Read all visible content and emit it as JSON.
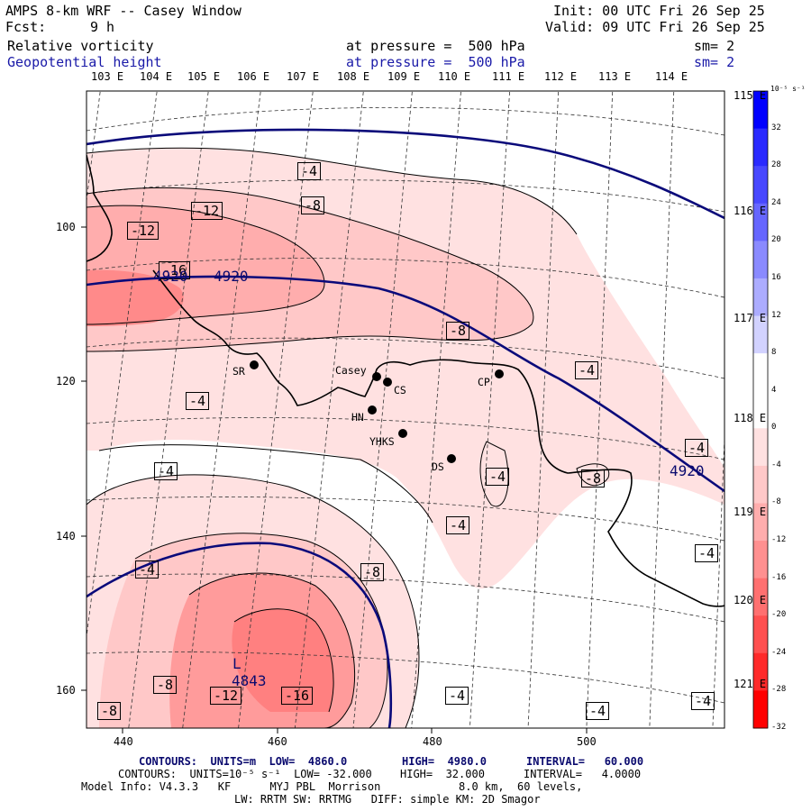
{
  "header": {
    "title": "AMPS 8-km WRF -- Casey Window",
    "fcst_label": "Fcst:",
    "fcst_value": "9 h",
    "init": "Init: 00 UTC Fri 26 Sep 25",
    "valid": "Valid: 09 UTC Fri 26 Sep 25",
    "field1": "Relative vorticity",
    "field1_level": "at pressure =  500 hPa",
    "field1_sm": "sm= 2",
    "field2": "Geopotential height",
    "field2_level": "at pressure =  500 hPa",
    "field2_sm": "sm= 2"
  },
  "lon_labels_top": [
    "103 E",
    "104 E",
    "105 E",
    "106 E",
    "107 E",
    "108 E",
    "109 E",
    "110 E",
    "111 E",
    "112 E",
    "113 E",
    "114 E"
  ],
  "lon_labels_right": [
    "115 E",
    "116 E",
    "117 E",
    "118 E",
    "119 E",
    "120 E",
    "121 E"
  ],
  "y_ticks": [
    "100",
    "120",
    "140",
    "160"
  ],
  "x_ticks": [
    "440",
    "460",
    "480",
    "500"
  ],
  "stations": [
    {
      "name": "SR"
    },
    {
      "name": "Casey"
    },
    {
      "name": "CS"
    },
    {
      "name": "HN"
    },
    {
      "name": "YHKS"
    },
    {
      "name": "CP"
    },
    {
      "name": "DS"
    }
  ],
  "vort_labels": [
    "-4",
    "-8",
    "-12",
    "-12",
    "-16",
    "-4",
    "-8",
    "-4",
    "-4",
    "-4",
    "-4",
    "-8",
    "-4",
    "-8",
    "-4",
    "-4",
    "-8",
    "-12",
    "-16",
    "-4",
    "-4",
    "-4",
    "-8"
  ],
  "height_labels": [
    "4920",
    "4920",
    "4920",
    "4843"
  ],
  "low_marker": "L",
  "colorbar": {
    "unit": "10⁻⁵ s⁻¹",
    "ticks": [
      "32",
      "28",
      "24",
      "20",
      "16",
      "12",
      "8",
      "4",
      "0",
      "-4",
      "-8",
      "-12",
      "-16",
      "-20",
      "-24",
      "-28",
      "-32"
    ],
    "colors": [
      "#0000ff",
      "#2a2aff",
      "#4848ff",
      "#6666ff",
      "#8a8aff",
      "#acacff",
      "#d2d2ff",
      "#ffffff",
      "#ffffff",
      "#ffe1e1",
      "#ffc8c8",
      "#ffadad",
      "#ff9090",
      "#ff7070",
      "#ff5050",
      "#ff2a2a",
      "#ff0000"
    ]
  },
  "footer": {
    "line1_contours": "CONTOURS:  UNITS=m  LOW=  4860.0",
    "line1_high": "HIGH=  4980.0",
    "line1_interval": "INTERVAL=   60.000",
    "line2_contours": "CONTOURS:  UNITS=10⁻⁵ s⁻¹  LOW= -32.000",
    "line2_high": "HIGH=  32.000",
    "line2_interval": "INTERVAL=   4.0000",
    "line3": "Model Info: V4.3.3   KF      MYJ PBL  Morrison            8.0 km,  60 levels,",
    "line4": "LW: RRTM SW: RRTMG   DIFF: simple KM: 2D Smagor"
  }
}
